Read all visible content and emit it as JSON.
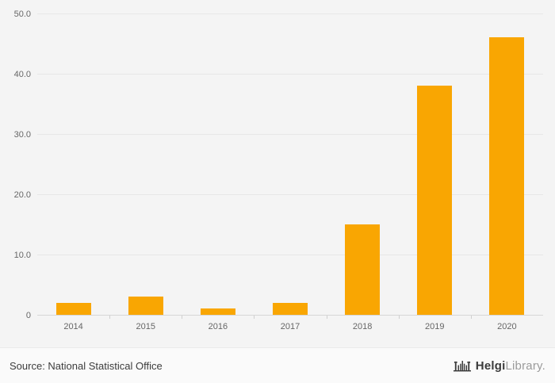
{
  "chart_data": {
    "type": "bar",
    "title": "",
    "xlabel": "",
    "ylabel": "",
    "categories": [
      "2014",
      "2015",
      "2016",
      "2017",
      "2018",
      "2019",
      "2020"
    ],
    "values": [
      2,
      3,
      1,
      2,
      15,
      38,
      46
    ],
    "ylim": [
      0,
      50
    ],
    "yticks": [
      0,
      10,
      20,
      30,
      40,
      50
    ],
    "ytick_labels": [
      "0",
      "10.0",
      "20.0",
      "30.0",
      "40.0",
      "50.0"
    ],
    "grid": true,
    "legend": "none",
    "bar_color": "#f9a602"
  },
  "footer": {
    "source": "Source: National Statistical Office",
    "logo": {
      "brand_primary": "Helgi",
      "brand_secondary": "Library.",
      "icon": "bridge-icon"
    }
  },
  "colors": {
    "background": "#f4f4f4",
    "footer_background": "#fafafa",
    "bar": "#f9a602",
    "gridline": "#e7e7e7",
    "axis": "#d6d6d6",
    "tick_text": "#666666"
  }
}
